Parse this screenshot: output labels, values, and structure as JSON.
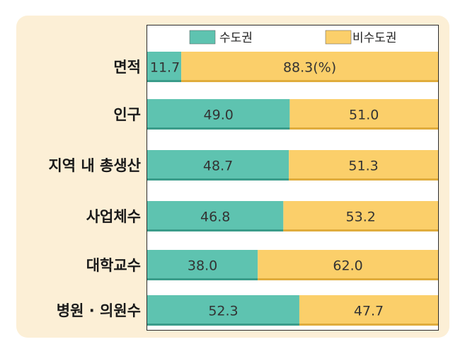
{
  "chart_data": {
    "type": "bar",
    "stacked": true,
    "orientation": "horizontal",
    "unit": "%",
    "categories": [
      "면적",
      "인구",
      "지역 내 총생산",
      "사업체수",
      "대학교수",
      "병원 · 의원수"
    ],
    "series": [
      {
        "name": "수도권",
        "color": "#5ec3b0",
        "values": [
          11.7,
          49.0,
          48.7,
          46.8,
          38.0,
          52.3
        ],
        "labels": [
          "11.7",
          "49.0",
          "48.7",
          "46.8",
          "38.0",
          "52.3"
        ]
      },
      {
        "name": "비수도권",
        "color": "#fbcf6a",
        "values": [
          88.3,
          51.0,
          51.3,
          53.2,
          62.0,
          47.7
        ],
        "labels": [
          "88.3(%)",
          "51.0",
          "51.3",
          "53.2",
          "62.0",
          "47.7"
        ]
      }
    ],
    "xlim": [
      0,
      100
    ],
    "legend": "top",
    "grid": false
  }
}
